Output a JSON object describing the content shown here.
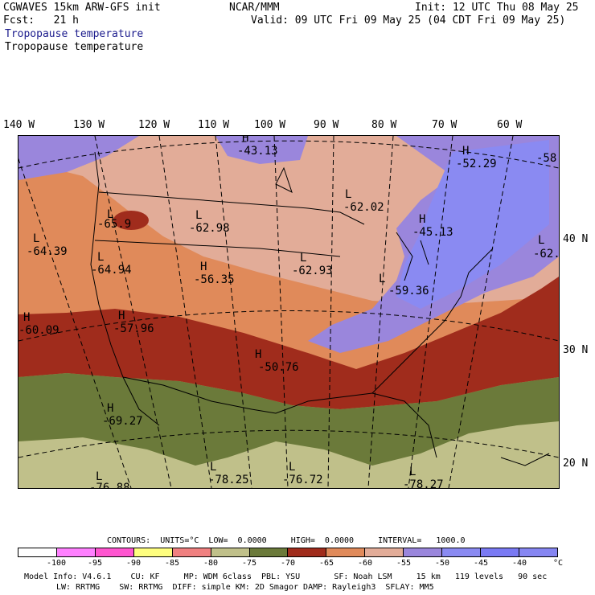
{
  "header": {
    "model": "CGWAVES 15km ARW-GFS init",
    "fcst": "Fcst:   21 h",
    "field1": "Tropopause temperature",
    "field2": "Tropopause temperature",
    "org": "NCAR/MMM",
    "init": "Init: 12 UTC Thu 08 May 25",
    "valid": "Valid: 09 UTC Fri 09 May 25 (04 CDT Fri 09 May 25)"
  },
  "axes": {
    "lon": [
      "140 W",
      "130 W",
      "120 W",
      "110 W",
      "100 W",
      "90 W",
      "80 W",
      "70 W",
      "60 W"
    ],
    "lat": [
      "40 N",
      "30 N",
      "20 N"
    ]
  },
  "map_labels": [
    {
      "t": "L",
      "v": "-64.39"
    },
    {
      "t": "L",
      "v": "-65.9"
    },
    {
      "t": "L",
      "v": "-62.98"
    },
    {
      "t": "L",
      "v": "-64.94"
    },
    {
      "t": "H",
      "v": "-56.35"
    },
    {
      "t": "H",
      "v": "-60.09"
    },
    {
      "t": "H",
      "v": "-57.96"
    },
    {
      "t": "H",
      "v": "-43.13"
    },
    {
      "t": "L",
      "v": "-62.02"
    },
    {
      "t": "L",
      "v": "-62.93"
    },
    {
      "t": "H",
      "v": "-45.13"
    },
    {
      "t": "H",
      "v": "-52.29"
    },
    {
      "t": "L",
      "v": "-59.36"
    },
    {
      "t": "H",
      "v": "-50.76"
    },
    {
      "t": "H",
      "v": "-69.27"
    },
    {
      "t": "L",
      "v": "-78.25"
    },
    {
      "t": "L",
      "v": "-76.72"
    },
    {
      "t": "L",
      "v": "-76.88"
    },
    {
      "t": "L",
      "v": "-78.27"
    },
    {
      "t": "L",
      "v": "-62."
    },
    {
      "t": "",
      "v": "-58"
    }
  ],
  "contours": {
    "text": "CONTOURS:  UNITS=°C  LOW=  0.0000     HIGH=  0.0000     INTERVAL=   1000.0"
  },
  "colorbar": {
    "colors": [
      "#ffffff",
      "#ff80ff",
      "#ff55d0",
      "#ffff7f",
      "#f08080",
      "#c0c08a",
      "#6b7a3a",
      "#a02c1c",
      "#e08a5a",
      "#e2ac98",
      "#9a86dc",
      "#8a8af2",
      "#7a7af4",
      "#8686f2"
    ],
    "ticks": [
      "-100",
      "-95",
      "-90",
      "-85",
      "-80",
      "-75",
      "-70",
      "-65",
      "-60",
      "-55",
      "-50",
      "-45",
      "-40",
      "°C"
    ]
  },
  "footer": {
    "line1": "Model Info: V4.6.1    CU: KF     MP: WDM 6class  PBL: YSU       SF: Noah LSM     15 km   119 levels   90 sec",
    "line2": "LW: RRTMG    SW: RRTMG  DIFF: simple KM: 2D Smagor DAMP: Rayleigh3  SFLAY: MM5"
  },
  "colors": {
    "band_light_purple": "#9a86dc",
    "band_blue": "#8a8af2",
    "band_salmon": "#e2ac98",
    "band_orange": "#e08a5a",
    "band_dark_red": "#a02c1c",
    "band_olive": "#6b7a3a",
    "band_khaki": "#c0c08a"
  }
}
